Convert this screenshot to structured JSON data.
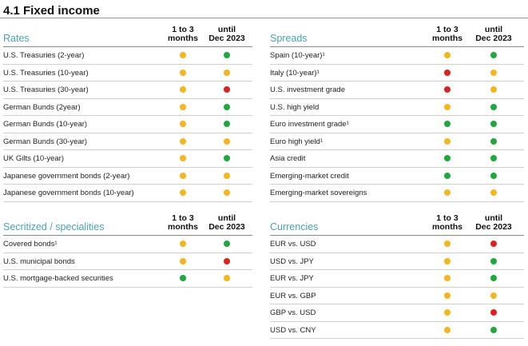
{
  "title": "4.1 Fixed income",
  "colors": {
    "green": "#1fa83c",
    "yellow": "#f5b51e",
    "red": "#e0201c",
    "accent": "#4aa3b0"
  },
  "col1_label_lines": [
    "1 to 3",
    "months"
  ],
  "col2_label_lines": [
    "until",
    "Dec 2023"
  ],
  "sections": [
    {
      "id": "rates",
      "title": "Rates",
      "rows": [
        {
          "label": "U.S. Treasuries (2-year)",
          "short": "yellow",
          "long": "green"
        },
        {
          "label": "U.S. Treasuries (10-year)",
          "short": "yellow",
          "long": "yellow"
        },
        {
          "label": "U.S. Treasuries (30-year)",
          "short": "yellow",
          "long": "red"
        },
        {
          "label": "German Bunds (2year)",
          "short": "yellow",
          "long": "green"
        },
        {
          "label": "German Bunds (10-year)",
          "short": "yellow",
          "long": "green"
        },
        {
          "label": "German Bunds (30-year)",
          "short": "yellow",
          "long": "yellow"
        },
        {
          "label": "UK Gilts (10-year)",
          "short": "yellow",
          "long": "green"
        },
        {
          "label": "Japanese government bonds (2-year)",
          "short": "yellow",
          "long": "yellow"
        },
        {
          "label": "Japanese government bonds (10-year)",
          "short": "yellow",
          "long": "yellow"
        }
      ]
    },
    {
      "id": "spreads",
      "title": "Spreads",
      "rows": [
        {
          "label": "Spain (10-year)¹",
          "short": "yellow",
          "long": "green"
        },
        {
          "label": "Italy (10-year)¹",
          "short": "red",
          "long": "yellow"
        },
        {
          "label": "U.S. investment grade",
          "short": "red",
          "long": "yellow"
        },
        {
          "label": "U.S. high yield",
          "short": "yellow",
          "long": "green"
        },
        {
          "label": "Euro investment grade¹",
          "short": "green",
          "long": "green"
        },
        {
          "label": "Euro high yield¹",
          "short": "yellow",
          "long": "green"
        },
        {
          "label": "Asia credit",
          "short": "green",
          "long": "green"
        },
        {
          "label": "Emerging-market credit",
          "short": "green",
          "long": "green"
        },
        {
          "label": "Emerging-market sovereigns",
          "short": "yellow",
          "long": "yellow"
        }
      ]
    },
    {
      "id": "securitized",
      "title": "Secritized / specialities",
      "rows": [
        {
          "label": "Covered bonds¹",
          "short": "yellow",
          "long": "green"
        },
        {
          "label": "U.S. municipal bonds",
          "short": "yellow",
          "long": "red"
        },
        {
          "label": "U.S. mortgage-backed securities",
          "short": "green",
          "long": "yellow"
        }
      ]
    },
    {
      "id": "currencies",
      "title": "Currencies",
      "rows": [
        {
          "label": "EUR vs. USD",
          "short": "yellow",
          "long": "red"
        },
        {
          "label": "USD vs. JPY",
          "short": "yellow",
          "long": "green"
        },
        {
          "label": "EUR vs. JPY",
          "short": "yellow",
          "long": "green"
        },
        {
          "label": "EUR vs. GBP",
          "short": "yellow",
          "long": "yellow"
        },
        {
          "label": "GBP vs. USD",
          "short": "yellow",
          "long": "red"
        },
        {
          "label": "USD vs. CNY",
          "short": "yellow",
          "long": "green"
        }
      ]
    }
  ]
}
